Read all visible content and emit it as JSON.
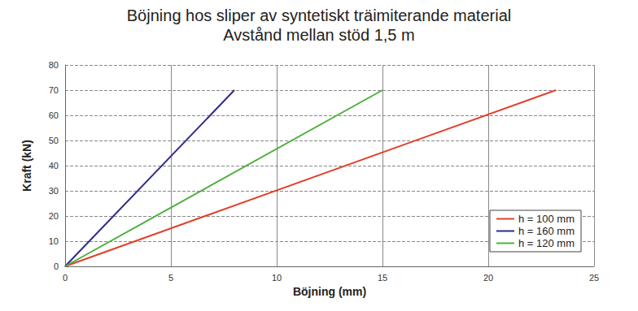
{
  "chart_data": {
    "type": "line",
    "title": "Böjning hos sliper av syntetiskt träimiterande material",
    "subtitle": "Avstånd mellan stöd 1,5 m",
    "x_label": "Böjning (mm)",
    "y_label": "Kraft (kN)",
    "series": [
      {
        "name": "h = 100 mm",
        "color": "#e0402a",
        "x": [
          0,
          23.2
        ],
        "values": [
          0,
          70
        ]
      },
      {
        "name": "h = 160 mm",
        "color": "#2b2b8c",
        "x": [
          0,
          8
        ],
        "values": [
          0,
          70
        ]
      },
      {
        "name": "h = 120 mm",
        "color": "#4caf3a",
        "x": [
          0,
          15
        ],
        "values": [
          0,
          70
        ]
      }
    ],
    "xlim": [
      0,
      25
    ],
    "xticks": [
      0,
      5,
      10,
      15,
      20,
      25
    ],
    "ylim": [
      0,
      80
    ],
    "yticks": [
      0,
      10,
      20,
      30,
      40,
      50,
      60,
      70,
      80
    ],
    "grid": true,
    "legend": "lower right"
  }
}
